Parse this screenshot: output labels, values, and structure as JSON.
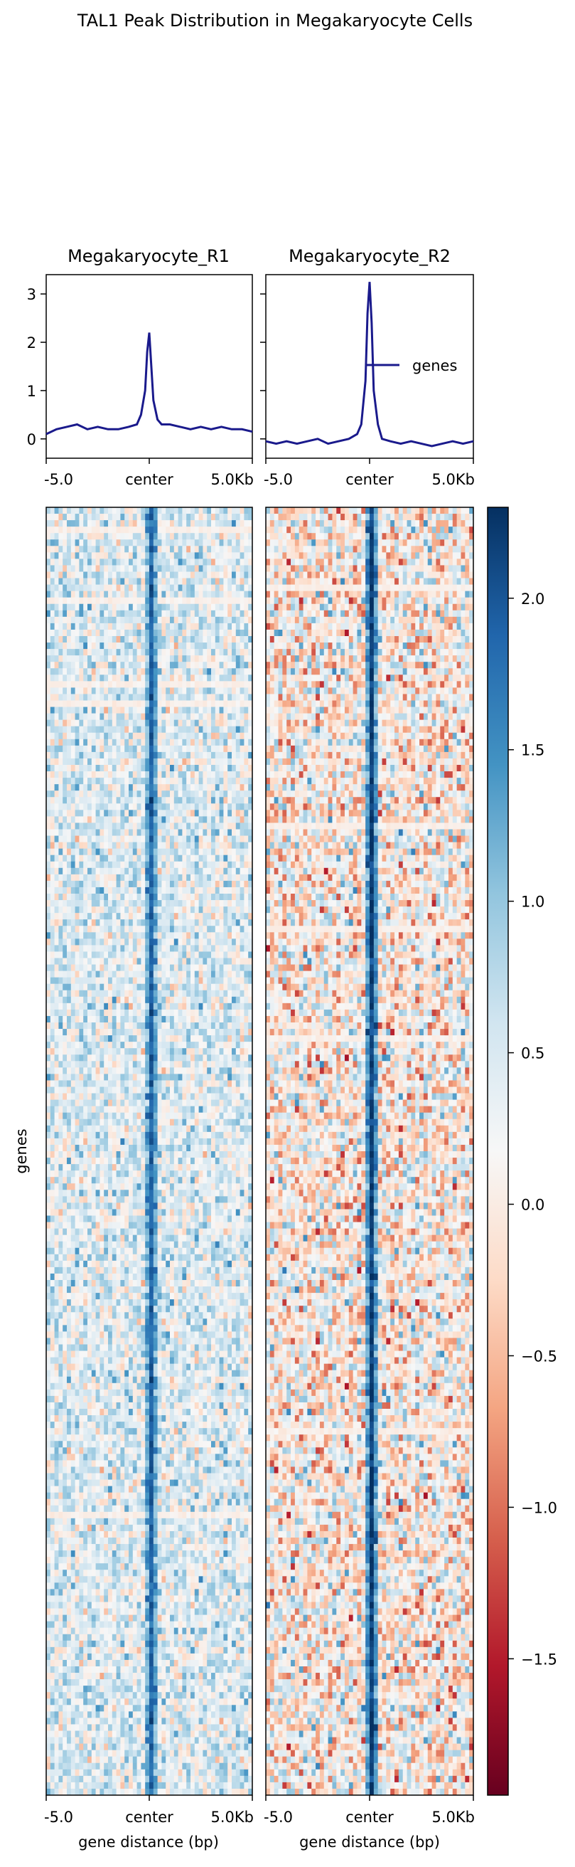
{
  "title": "TAL1 Peak Distribution in Megakaryocyte Cells",
  "ylabel_heatmap": "genes",
  "colors": {
    "line": "#1a1a8c",
    "cmap": "RdBu",
    "cmap_stops": [
      "#67001f",
      "#b2182b",
      "#d6604d",
      "#f4a582",
      "#fddbc7",
      "#f7f7f7",
      "#d1e5f0",
      "#92c5de",
      "#4393c3",
      "#2166ac",
      "#053061"
    ]
  },
  "chart_data": [
    {
      "type": "line",
      "title": "Megakaryocyte_R1",
      "x_ticks": [
        "-5.0",
        "center",
        "5.0Kb"
      ],
      "xlim": [
        -5.0,
        5.0
      ],
      "ylim": [
        -0.4,
        3.4
      ],
      "yticks": [
        0,
        1,
        2,
        3
      ],
      "series": [
        {
          "x": [
            -5.0,
            -4.5,
            -4.0,
            -3.5,
            -3.0,
            -2.5,
            -2.0,
            -1.5,
            -1.0,
            -0.6,
            -0.4,
            -0.2,
            -0.1,
            0.0,
            0.1,
            0.2,
            0.4,
            0.6,
            1.0,
            1.5,
            2.0,
            2.5,
            3.0,
            3.5,
            4.0,
            4.5,
            5.0
          ],
          "y": [
            0.1,
            0.2,
            0.25,
            0.3,
            0.2,
            0.25,
            0.2,
            0.2,
            0.25,
            0.3,
            0.5,
            1.0,
            1.8,
            2.2,
            1.5,
            0.8,
            0.4,
            0.3,
            0.3,
            0.25,
            0.2,
            0.25,
            0.2,
            0.25,
            0.2,
            0.2,
            0.15
          ]
        }
      ]
    },
    {
      "type": "line",
      "title": "Megakaryocyte_R2",
      "x_ticks": [
        "-5.0",
        "center",
        "5.0Kb"
      ],
      "xlim": [
        -5.0,
        5.0
      ],
      "ylim": [
        -0.4,
        3.4
      ],
      "legend": "genes",
      "legend_position": "right",
      "series": [
        {
          "name": "genes",
          "x": [
            -5.0,
            -4.5,
            -4.0,
            -3.5,
            -3.0,
            -2.5,
            -2.0,
            -1.5,
            -1.0,
            -0.6,
            -0.4,
            -0.2,
            -0.1,
            0.0,
            0.1,
            0.2,
            0.4,
            0.6,
            1.0,
            1.5,
            2.0,
            2.5,
            3.0,
            3.5,
            4.0,
            4.5,
            5.0
          ],
          "y": [
            -0.05,
            -0.1,
            -0.05,
            -0.1,
            -0.05,
            0.0,
            -0.1,
            -0.05,
            0.0,
            0.1,
            0.3,
            1.2,
            2.6,
            3.25,
            2.4,
            1.0,
            0.3,
            0.0,
            -0.05,
            -0.1,
            -0.05,
            -0.1,
            -0.15,
            -0.1,
            -0.05,
            -0.1,
            -0.05
          ]
        }
      ]
    },
    {
      "type": "heatmap",
      "title": "",
      "xlabel": "gene distance (bp)",
      "ylabel": "genes",
      "x_ticks": [
        "-5.0",
        "center",
        "5.0Kb"
      ],
      "colorbar_range": [
        -1.95,
        2.3
      ],
      "colorbar_ticks": [
        2.0,
        1.5,
        1.0,
        0.5,
        0.0,
        -0.5,
        -1.0,
        -1.5
      ],
      "colorbar_tick_labels": [
        "2.0",
        "1.5",
        "1.0",
        "0.5",
        "0.0",
        "−0.5",
        "−1.0",
        "−1.5"
      ],
      "panels": [
        {
          "name": "Megakaryocyte_R1",
          "center_value": 1.9,
          "background_mean": 0.45,
          "noise": 0.7
        },
        {
          "name": "Megakaryocyte_R2",
          "center_value": 2.2,
          "background_mean": 0.05,
          "noise": 1.0
        }
      ]
    }
  ]
}
